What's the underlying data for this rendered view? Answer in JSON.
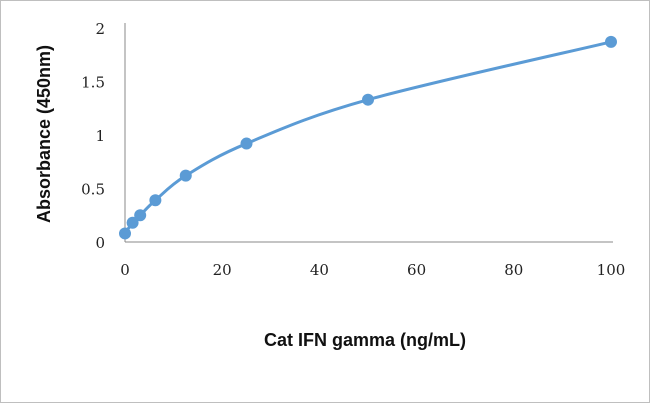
{
  "chart_data": {
    "type": "scatter",
    "xlabel": "Cat IFN gamma (ng/mL)",
    "ylabel": "Absorbance (450nm)",
    "xlim": [
      0,
      100
    ],
    "ylim": [
      0,
      2
    ],
    "xticks": [
      "0",
      "20",
      "40",
      "60",
      "80",
      "100"
    ],
    "yticks": [
      "0",
      "0.5",
      "1",
      "1.5",
      "2"
    ],
    "grid": false,
    "smooth_line": true,
    "color": "#5b9bd5",
    "x": [
      0,
      1.56,
      3.125,
      6.25,
      12.5,
      25,
      50,
      100
    ],
    "y": [
      0.08,
      0.18,
      0.25,
      0.39,
      0.62,
      0.92,
      1.33,
      1.87
    ]
  }
}
